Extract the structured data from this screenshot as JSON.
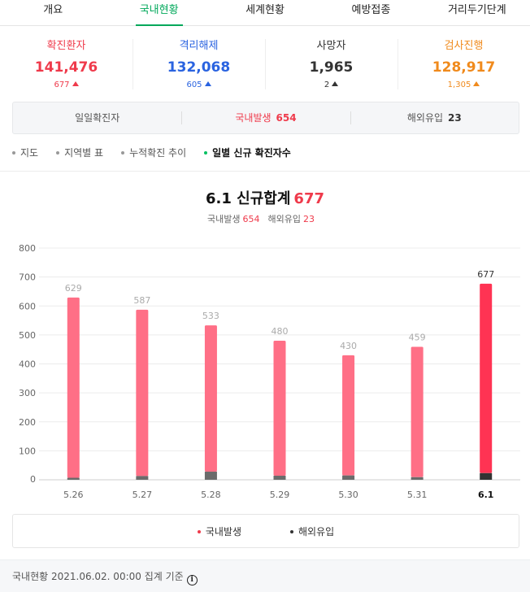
{
  "tabs": [
    "개요",
    "국내현황",
    "세계현황",
    "예방접종",
    "거리두기단계"
  ],
  "active_tab": 1,
  "stats": [
    {
      "label": "확진환자",
      "value": "141,476",
      "change": "677",
      "color": "#ef3a4b"
    },
    {
      "label": "격리해제",
      "value": "132,068",
      "change": "605",
      "color": "#2a63e0"
    },
    {
      "label": "사망자",
      "value": "1,965",
      "change": "2",
      "color": "#333333"
    },
    {
      "label": "검사진행",
      "value": "128,917",
      "change": "1,305",
      "color": "#f08a1c"
    }
  ],
  "daily": {
    "label": "일일확진자",
    "domestic_label": "국내발생",
    "domestic_value": "654",
    "overseas_label": "해외유입",
    "overseas_value": "23"
  },
  "subtabs": [
    "지도",
    "지역별 표",
    "누적확진 추이",
    "일별 신규 확진자수"
  ],
  "active_subtab": 3,
  "chart_heading": {
    "date": "6.1",
    "title_text": "신규합계",
    "total": "677",
    "domestic_label": "국내발생",
    "domestic_value": "654",
    "overseas_label": "해외유입",
    "overseas_value": "23"
  },
  "chart_data": {
    "type": "bar",
    "categories": [
      "5.26",
      "5.27",
      "5.28",
      "5.29",
      "5.30",
      "5.31",
      "6.1"
    ],
    "series": [
      {
        "name": "국내발생",
        "values": [
          622,
          574,
          505,
          466,
          415,
          450,
          654
        ],
        "color": "#ff6f86",
        "highlight_color": "#ff3353"
      },
      {
        "name": "해외유입",
        "values": [
          7,
          13,
          28,
          14,
          15,
          9,
          23
        ],
        "color": "#6b6b6b",
        "highlight_color": "#333333"
      }
    ],
    "totals": [
      629,
      587,
      533,
      480,
      430,
      459,
      677
    ],
    "ylim": [
      0,
      800
    ],
    "yticks": [
      0,
      100,
      200,
      300,
      400,
      500,
      600,
      700,
      800
    ],
    "stacked": true,
    "grid": true,
    "highlight_index": 6
  },
  "legend": [
    {
      "label": "국내발생",
      "color": "#ef3a4b"
    },
    {
      "label": "해외유입",
      "color": "#333333"
    }
  ],
  "footer": {
    "text": "국내현황 2021.06.02. 00:00 집계 기준",
    "info_icon": "info-icon"
  }
}
